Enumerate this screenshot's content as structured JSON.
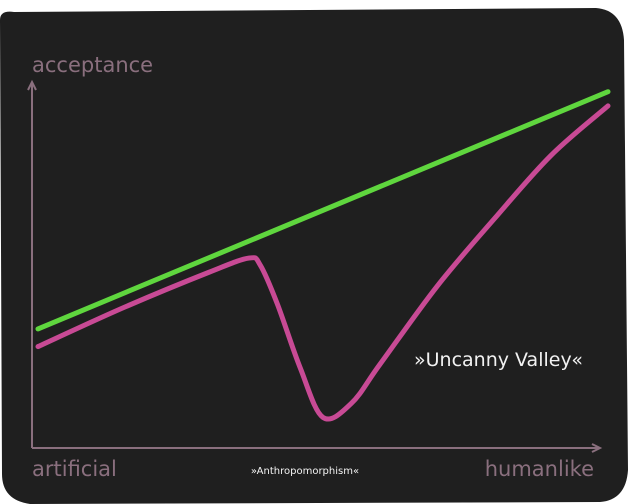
{
  "chart_data": {
    "type": "line",
    "ylabel": "acceptance",
    "x_start_label": "artificial",
    "x_end_label": "humanlike",
    "x_caption": "»Anthropomorphism«",
    "annotation": "»Uncanny Valley«",
    "grid": false,
    "xlim": [
      0,
      100
    ],
    "ylim": [
      0,
      100
    ],
    "colors": {
      "background": "#1f1f1f",
      "axis": "#8a6f7e",
      "series_green": "#5fd63e",
      "series_pink": "#c84a95"
    },
    "series": [
      {
        "color": "#5fd63e",
        "x": [
          0,
          100
        ],
        "y": [
          28,
          95
        ]
      },
      {
        "color": "#c84a95",
        "x": [
          0,
          15,
          30,
          37,
          39,
          42,
          46,
          50,
          55,
          60,
          70,
          80,
          90,
          100
        ],
        "y": [
          23,
          34,
          44,
          48,
          46,
          35,
          17,
          3,
          7,
          18,
          40,
          59,
          77,
          91
        ]
      }
    ]
  }
}
